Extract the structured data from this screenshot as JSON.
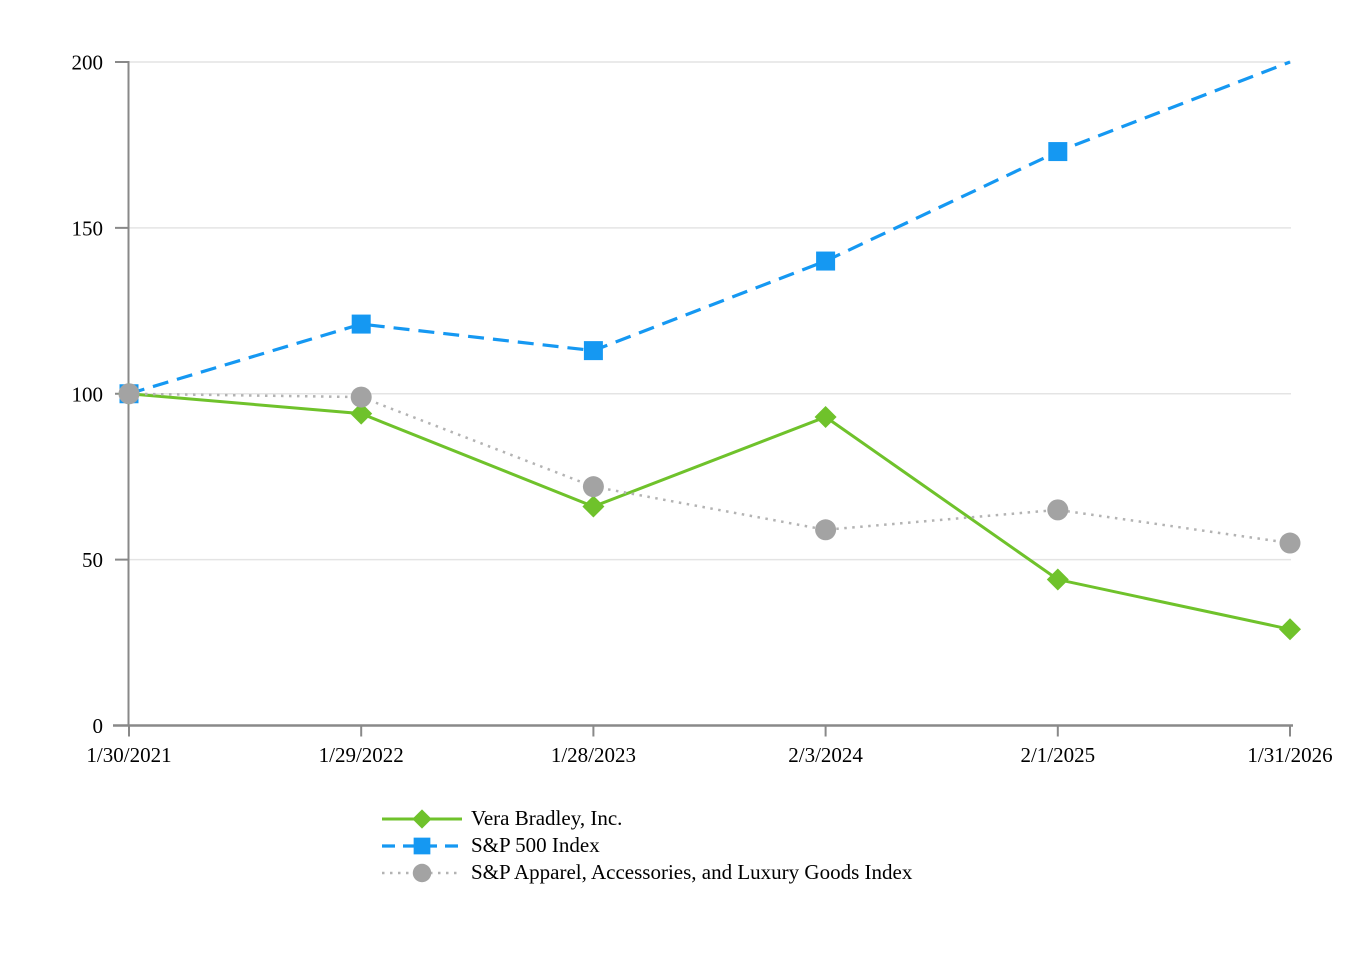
{
  "chart_data": {
    "type": "line",
    "categories": [
      "1/30/2021",
      "1/29/2022",
      "1/28/2023",
      "2/3/2024",
      "2/1/2025",
      "1/31/2026"
    ],
    "series": [
      {
        "name": "Vera Bradley, Inc.",
        "values": [
          100,
          94,
          66,
          93,
          44,
          29
        ],
        "line_color": "#6FC22B",
        "marker_color": "#6FC22B",
        "line_style": "solid",
        "marker": "diamond",
        "final_marker_clipped": false
      },
      {
        "name": "S&P 500 Index",
        "values": [
          100,
          121,
          113,
          140,
          173,
          200
        ],
        "line_color": "#1598F2",
        "marker_color": "#1598F2",
        "line_style": "dashed",
        "marker": "square",
        "final_marker_clipped": true
      },
      {
        "name": "S&P Apparel, Accessories, and Luxury Goods Index",
        "values": [
          100,
          99,
          72,
          59,
          65,
          55
        ],
        "line_color": "#B3B3B3",
        "marker_color": "#A3A3A3",
        "line_style": "dotted",
        "marker": "circle",
        "final_marker_clipped": false
      }
    ],
    "ylim": [
      0,
      200
    ],
    "yticks": [
      0,
      50,
      100,
      150,
      200
    ],
    "xlabel": "",
    "ylabel": "",
    "grid": "horizontal",
    "legend_position": "bottom-left",
    "colors": {
      "axis": "#898989",
      "gridline": "#E4E4E4",
      "tick_label": "#000000",
      "background": "#FFFFFF"
    }
  }
}
